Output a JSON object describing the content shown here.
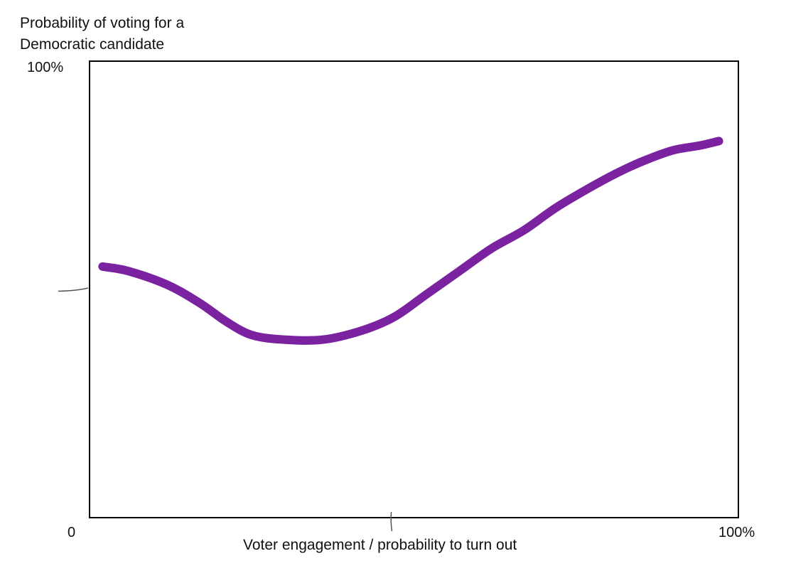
{
  "chart_data": {
    "type": "line",
    "ylabel": "Probability of voting for a\nDemocratic candidate",
    "xlabel": "Voter engagement / probability to turn out",
    "x_tick_labels": [
      "0",
      "100%"
    ],
    "y_tick_labels": [
      "100%"
    ],
    "xlim": [
      0,
      100
    ],
    "ylim": [
      0,
      100
    ],
    "grid": false,
    "series": [
      {
        "color": "#7b22a0",
        "x": [
          2,
          6,
          12,
          17,
          21,
          25,
          30,
          36,
          42,
          47,
          52,
          57,
          62,
          67,
          72,
          78,
          82,
          86,
          90,
          94,
          97
        ],
        "y": [
          55,
          54,
          51,
          47,
          43,
          40,
          39,
          39,
          41,
          44,
          49,
          54,
          59,
          63,
          68,
          73,
          76,
          78.5,
          80.5,
          81.5,
          82.5
        ]
      }
    ],
    "annotations": [
      {
        "type": "hand-tick",
        "axis": "y",
        "at": 50
      },
      {
        "type": "hand-tick",
        "axis": "x",
        "at": 46.5
      }
    ]
  }
}
